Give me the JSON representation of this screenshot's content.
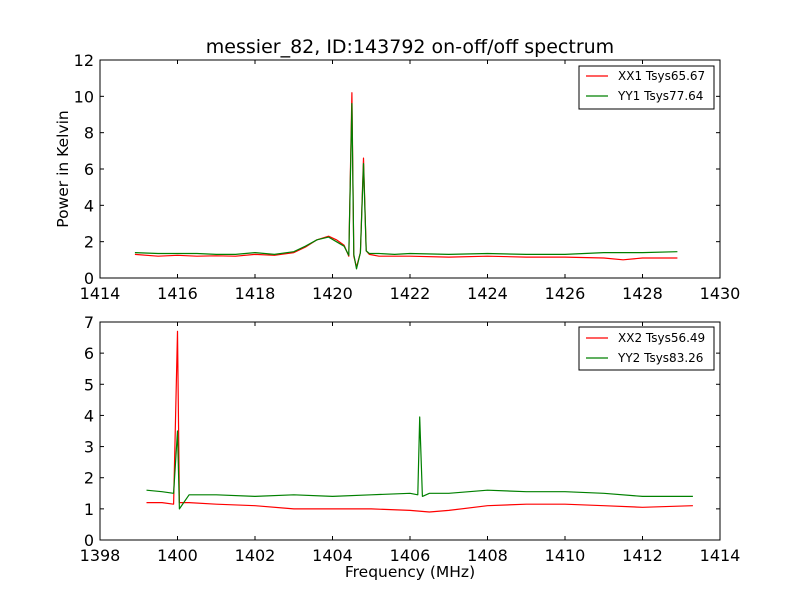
{
  "chart_data": [
    {
      "type": "line",
      "title": "messier_82, ID:143792 on-off/off spectrum",
      "xlabel": "",
      "ylabel": "Power in Kelvin",
      "xlim": [
        1414,
        1430
      ],
      "ylim": [
        0,
        12
      ],
      "xticks": [
        1414,
        1416,
        1418,
        1420,
        1422,
        1424,
        1426,
        1428,
        1430
      ],
      "yticks": [
        0,
        2,
        4,
        6,
        8,
        10,
        12
      ],
      "legend_position": "top-right",
      "series": [
        {
          "name": "XX1 Tsys65.67",
          "color": "#ff0000",
          "x": [
            1414.9,
            1415.5,
            1416.0,
            1416.5,
            1417.0,
            1417.5,
            1418.0,
            1418.5,
            1419.0,
            1419.3,
            1419.6,
            1419.9,
            1420.1,
            1420.3,
            1420.42,
            1420.5,
            1420.55,
            1420.62,
            1420.72,
            1420.8,
            1420.87,
            1420.95,
            1421.2,
            1421.6,
            1422.0,
            1423.0,
            1424.0,
            1425.0,
            1426.0,
            1427.0,
            1427.5,
            1428.0,
            1428.9
          ],
          "values": [
            1.3,
            1.2,
            1.25,
            1.2,
            1.22,
            1.2,
            1.3,
            1.25,
            1.4,
            1.7,
            2.1,
            2.3,
            2.1,
            1.8,
            1.2,
            10.2,
            1.2,
            0.6,
            1.4,
            6.6,
            1.5,
            1.3,
            1.2,
            1.2,
            1.2,
            1.15,
            1.2,
            1.15,
            1.15,
            1.1,
            1.0,
            1.1,
            1.1
          ]
        },
        {
          "name": "YY1 Tsys77.64",
          "color": "#008000",
          "x": [
            1414.9,
            1415.5,
            1416.0,
            1416.5,
            1417.0,
            1417.5,
            1418.0,
            1418.5,
            1419.0,
            1419.3,
            1419.6,
            1419.9,
            1420.1,
            1420.3,
            1420.42,
            1420.5,
            1420.55,
            1420.62,
            1420.72,
            1420.8,
            1420.87,
            1420.95,
            1421.2,
            1421.6,
            1422.0,
            1423.0,
            1424.0,
            1425.0,
            1426.0,
            1427.0,
            1427.5,
            1428.0,
            1428.9
          ],
          "values": [
            1.4,
            1.35,
            1.35,
            1.35,
            1.3,
            1.3,
            1.4,
            1.3,
            1.45,
            1.75,
            2.1,
            2.25,
            2.0,
            1.75,
            1.25,
            9.6,
            1.3,
            0.5,
            1.4,
            6.3,
            1.5,
            1.35,
            1.35,
            1.3,
            1.35,
            1.3,
            1.35,
            1.3,
            1.3,
            1.4,
            1.4,
            1.4,
            1.45
          ]
        }
      ]
    },
    {
      "type": "line",
      "title": "",
      "xlabel": "Frequency (MHz)",
      "ylabel": "",
      "xlim": [
        1398,
        1414
      ],
      "ylim": [
        0,
        7
      ],
      "xticks": [
        1398,
        1400,
        1402,
        1404,
        1406,
        1408,
        1410,
        1412,
        1414
      ],
      "yticks": [
        0,
        1,
        2,
        3,
        4,
        5,
        6,
        7
      ],
      "legend_position": "top-right",
      "series": [
        {
          "name": "XX2 Tsys56.49",
          "color": "#ff0000",
          "x": [
            1399.2,
            1399.6,
            1399.9,
            1400.0,
            1400.05,
            1400.3,
            1401.0,
            1402.0,
            1403.0,
            1404.0,
            1405.0,
            1406.0,
            1406.5,
            1407.0,
            1408.0,
            1409.0,
            1410.0,
            1411.0,
            1412.0,
            1413.3
          ],
          "values": [
            1.2,
            1.2,
            1.15,
            6.7,
            1.2,
            1.2,
            1.15,
            1.1,
            1.0,
            1.0,
            1.0,
            0.95,
            0.9,
            0.95,
            1.1,
            1.15,
            1.15,
            1.1,
            1.05,
            1.1
          ]
        },
        {
          "name": "YY2 Tsys83.26",
          "color": "#008000",
          "x": [
            1399.2,
            1399.6,
            1399.9,
            1400.0,
            1400.05,
            1400.3,
            1401.0,
            1402.0,
            1403.0,
            1404.0,
            1405.0,
            1406.0,
            1406.2,
            1406.25,
            1406.32,
            1406.5,
            1407.0,
            1408.0,
            1409.0,
            1410.0,
            1411.0,
            1412.0,
            1413.3
          ],
          "values": [
            1.6,
            1.55,
            1.5,
            3.5,
            1.0,
            1.45,
            1.45,
            1.4,
            1.45,
            1.4,
            1.45,
            1.5,
            1.45,
            3.95,
            1.4,
            1.5,
            1.5,
            1.6,
            1.55,
            1.55,
            1.5,
            1.4,
            1.4
          ]
        }
      ]
    }
  ]
}
